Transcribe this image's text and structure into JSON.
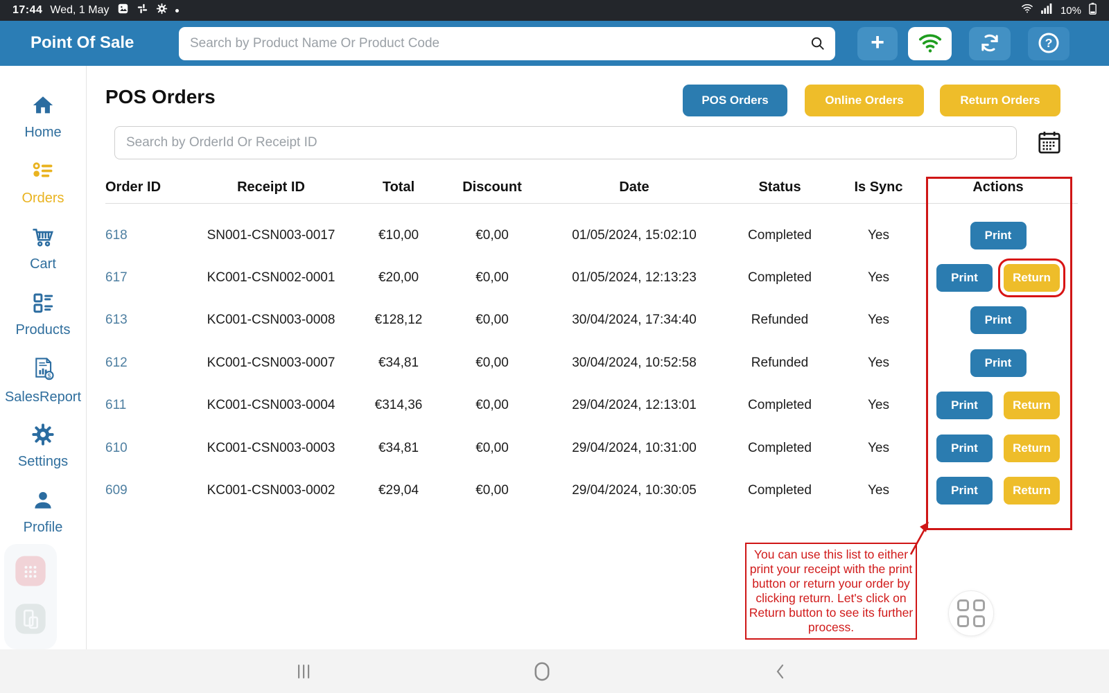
{
  "status_bar": {
    "time": "17:44",
    "date": "Wed, 1 May",
    "battery": "10%"
  },
  "header": {
    "app_title": "Point Of Sale",
    "search_placeholder": "Search by Product Name Or Product Code",
    "add_label": "+"
  },
  "sidebar": {
    "items": [
      {
        "label": "Home",
        "active": false
      },
      {
        "label": "Orders",
        "active": true
      },
      {
        "label": "Cart",
        "active": false
      },
      {
        "label": "Products",
        "active": false
      },
      {
        "label": "SalesReport",
        "active": false
      },
      {
        "label": "Settings",
        "active": false
      },
      {
        "label": "Profile",
        "active": false
      }
    ]
  },
  "main": {
    "title": "POS Orders",
    "tabs": [
      {
        "label": "POS Orders",
        "active": true
      },
      {
        "label": "Online Orders",
        "active": false
      },
      {
        "label": "Return Orders",
        "active": false
      }
    ],
    "search_placeholder": "Search by OrderId Or Receipt ID",
    "action_labels": {
      "print": "Print",
      "return": "Return"
    },
    "table": {
      "columns": [
        "Order ID",
        "Receipt ID",
        "Total",
        "Discount",
        "Date",
        "Status",
        "Is Sync",
        "Actions"
      ],
      "rows": [
        {
          "order_id": "618",
          "receipt_id": "SN001-CSN003-0017",
          "total": "€10,00",
          "discount": "€0,00",
          "date": "01/05/2024, 15:02:10",
          "status": "Completed",
          "is_sync": "Yes",
          "actions": [
            "Print"
          ]
        },
        {
          "order_id": "617",
          "receipt_id": "KC001-CSN002-0001",
          "total": "€20,00",
          "discount": "€0,00",
          "date": "01/05/2024, 12:13:23",
          "status": "Completed",
          "is_sync": "Yes",
          "actions": [
            "Print",
            "Return"
          ],
          "return_highlighted": true
        },
        {
          "order_id": "613",
          "receipt_id": "KC001-CSN003-0008",
          "total": "€128,12",
          "discount": "€0,00",
          "date": "30/04/2024, 17:34:40",
          "status": "Refunded",
          "is_sync": "Yes",
          "actions": [
            "Print"
          ]
        },
        {
          "order_id": "612",
          "receipt_id": "KC001-CSN003-0007",
          "total": "€34,81",
          "discount": "€0,00",
          "date": "30/04/2024, 10:52:58",
          "status": "Refunded",
          "is_sync": "Yes",
          "actions": [
            "Print"
          ]
        },
        {
          "order_id": "611",
          "receipt_id": "KC001-CSN003-0004",
          "total": "€314,36",
          "discount": "€0,00",
          "date": "29/04/2024, 12:13:01",
          "status": "Completed",
          "is_sync": "Yes",
          "actions": [
            "Print",
            "Return"
          ]
        },
        {
          "order_id": "610",
          "receipt_id": "KC001-CSN003-0003",
          "total": "€34,81",
          "discount": "€0,00",
          "date": "29/04/2024, 10:31:00",
          "status": "Completed",
          "is_sync": "Yes",
          "actions": [
            "Print",
            "Return"
          ]
        },
        {
          "order_id": "609",
          "receipt_id": "KC001-CSN003-0002",
          "total": "€29,04",
          "discount": "€0,00",
          "date": "29/04/2024, 10:30:05",
          "status": "Completed",
          "is_sync": "Yes",
          "actions": [
            "Print",
            "Return"
          ]
        }
      ]
    }
  },
  "annotation": {
    "note": "You can use this list to either print your receipt with the print button or return your order by clicking return. Let's click on Return button to see its further process."
  },
  "colors": {
    "header_blue": "#2b7db5",
    "button_blue": "#2b7cb0",
    "accent_yellow": "#eebd2a",
    "sidebar_blue": "#2f6e9d",
    "link_blue": "#4e7fa1",
    "annotation_red": "#cf1616",
    "wifi_green": "#1f9d1f"
  }
}
